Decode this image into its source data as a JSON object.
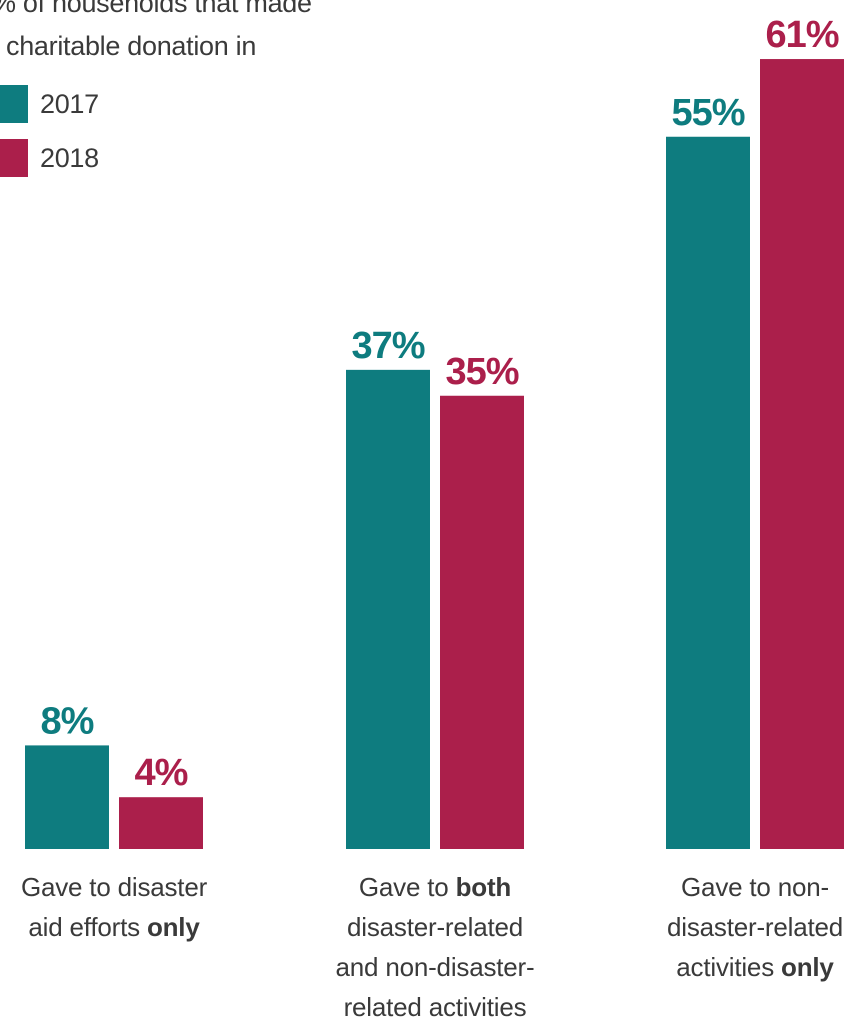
{
  "colors": {
    "series_2017": "#0e7c7f",
    "series_2018": "#ab1f4b"
  },
  "chart_data": {
    "type": "bar",
    "title_lines": [
      "% of households that made",
      "charitable donation in"
    ],
    "series": [
      {
        "name": "2017",
        "values": [
          8,
          37,
          55
        ],
        "labels": [
          "8%",
          "37%",
          "55%"
        ]
      },
      {
        "name": "2018",
        "values": [
          4,
          35,
          61
        ],
        "labels": [
          "4%",
          "35%",
          "61%"
        ]
      }
    ],
    "categories": [
      {
        "lines": [
          [
            {
              "t": "Gave to disaster",
              "b": false
            }
          ],
          [
            {
              "t": "aid efforts ",
              "b": false
            },
            {
              "t": "only",
              "b": true
            }
          ]
        ]
      },
      {
        "lines": [
          [
            {
              "t": "Gave to ",
              "b": false
            },
            {
              "t": "both",
              "b": true
            }
          ],
          [
            {
              "t": "disaster-related",
              "b": false
            }
          ],
          [
            {
              "t": "and non-disaster-",
              "b": false
            }
          ],
          [
            {
              "t": "related activities",
              "b": false
            }
          ]
        ]
      },
      {
        "lines": [
          [
            {
              "t": "Gave to non-",
              "b": false
            }
          ],
          [
            {
              "t": "disaster-related",
              "b": false
            }
          ],
          [
            {
              "t": "activities ",
              "b": false
            },
            {
              "t": "only",
              "b": true
            }
          ]
        ]
      }
    ],
    "ylim": [
      0,
      100
    ],
    "grid": false,
    "legend_position": "top-left"
  }
}
